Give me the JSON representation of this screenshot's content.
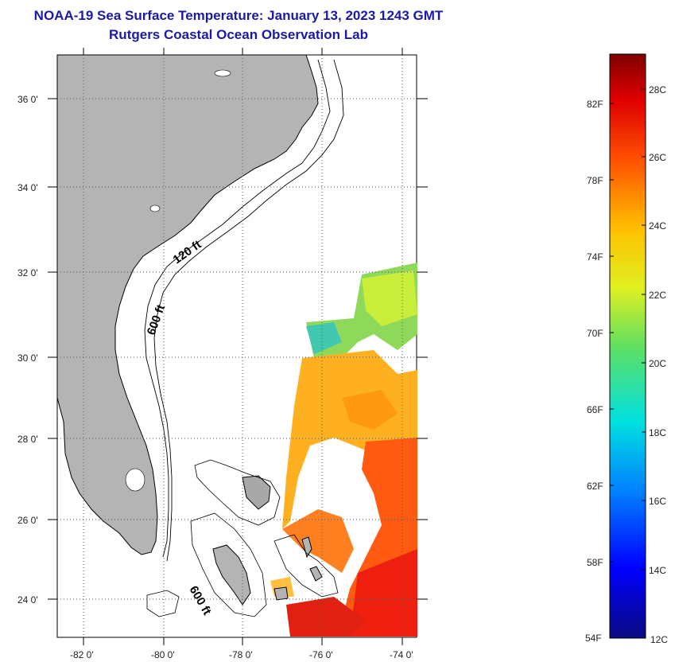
{
  "title": {
    "line1": "NOAA-19 Sea Surface Temperature:  January 13, 2023 1243 GMT",
    "line2": "Rutgers Coastal Ocean Observation Lab"
  },
  "map": {
    "lat_labels": [
      "36 0'",
      "34 0'",
      "32 0'",
      "30 0'",
      "28 0'",
      "26 0'",
      "24 0'"
    ],
    "lon_labels": [
      "-82 0'",
      "-80 0'",
      "-78 0'",
      "-76 0'",
      "-74 0'"
    ],
    "contour_labels": {
      "c120": "120 ft",
      "c600a": "600 ft",
      "c600b": "600 ft"
    },
    "colors": {
      "land": "#b4b4b4",
      "ocean": "#ffffff"
    }
  },
  "colorbar": {
    "f_labels": [
      "82F",
      "78F",
      "74F",
      "70F",
      "66F",
      "62F",
      "58F",
      "54F"
    ],
    "c_labels": [
      "28C",
      "26C",
      "24C",
      "22C",
      "20C",
      "18C",
      "16C",
      "14C",
      "12C"
    ]
  }
}
